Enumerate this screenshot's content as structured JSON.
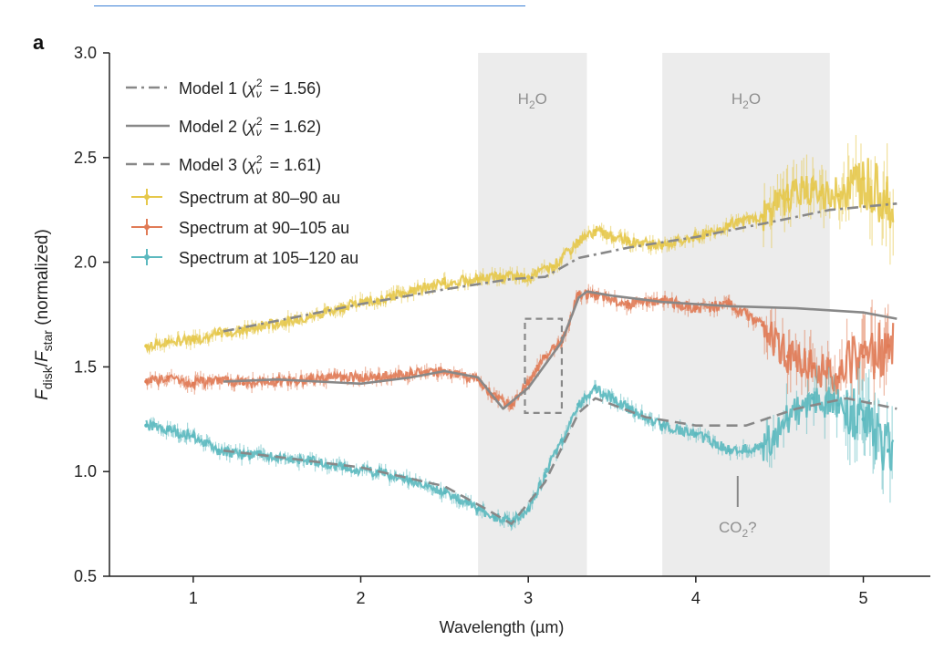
{
  "chart_data": {
    "type": "line",
    "panel_label": "a",
    "xlabel": "Wavelength (µm)",
    "ylabel_parts": {
      "f1": "F",
      "s1": "disk",
      "sep": "/",
      "f2": "F",
      "s2": "star",
      "rest": " (normalized)"
    },
    "xlim": [
      0.5,
      5.4
    ],
    "ylim": [
      0.5,
      3.0
    ],
    "xticks": [
      1,
      2,
      3,
      4,
      5
    ],
    "yticks": [
      "0.5",
      "1.0",
      "1.5",
      "2.0",
      "2.5",
      "3.0"
    ],
    "grid": false,
    "legend_position": "top-left",
    "shaded_regions": [
      {
        "x0": 2.7,
        "x1": 3.35,
        "label": "H2O",
        "label_main": "H",
        "label_sub": "2",
        "label_end": "O"
      },
      {
        "x0": 3.8,
        "x1": 4.8,
        "label": "H2O",
        "label_main": "H",
        "label_sub": "2",
        "label_end": "O"
      }
    ],
    "annotation": {
      "text": "CO2?",
      "main": "CO",
      "sub": "2",
      "end": "?",
      "x": 4.25,
      "y": 0.82
    },
    "highlight_box": {
      "x0": 2.98,
      "x1": 3.2,
      "y0": 1.28,
      "y1": 1.73
    },
    "colors": {
      "s1": "#e6c84b",
      "s2": "#e07b56",
      "s3": "#5cb9bf",
      "model": "#888888",
      "shade": "#ececec"
    },
    "series": [
      {
        "name": "Spectrum at 80–90 au",
        "color": "#e6c84b",
        "x": [
          0.72,
          0.85,
          1.0,
          1.15,
          1.3,
          1.5,
          1.7,
          1.9,
          2.1,
          2.3,
          2.5,
          2.7,
          2.85,
          3.0,
          3.15,
          3.3,
          3.4,
          3.6,
          3.8,
          4.0,
          4.2,
          4.4,
          4.55,
          4.7,
          4.85,
          5.0,
          5.15
        ],
        "y": [
          1.6,
          1.62,
          1.63,
          1.66,
          1.68,
          1.71,
          1.74,
          1.79,
          1.82,
          1.86,
          1.9,
          1.92,
          1.93,
          1.93,
          1.98,
          2.1,
          2.15,
          2.1,
          2.08,
          2.12,
          2.18,
          2.22,
          2.3,
          2.35,
          2.32,
          2.4,
          2.28
        ]
      },
      {
        "name": "Spectrum at 90–105 au",
        "color": "#e07b56",
        "x": [
          0.72,
          0.85,
          1.0,
          1.15,
          1.3,
          1.5,
          1.7,
          1.9,
          2.1,
          2.3,
          2.5,
          2.7,
          2.8,
          2.9,
          3.0,
          3.1,
          3.2,
          3.3,
          3.4,
          3.6,
          3.8,
          4.0,
          4.2,
          4.4,
          4.55,
          4.7,
          4.85,
          5.0,
          5.15
        ],
        "y": [
          1.43,
          1.45,
          1.42,
          1.44,
          1.42,
          1.43,
          1.44,
          1.45,
          1.45,
          1.47,
          1.48,
          1.44,
          1.35,
          1.32,
          1.42,
          1.55,
          1.62,
          1.85,
          1.84,
          1.8,
          1.82,
          1.78,
          1.8,
          1.7,
          1.55,
          1.5,
          1.45,
          1.55,
          1.6
        ]
      },
      {
        "name": "Spectrum at 105–120 au",
        "color": "#5cb9bf",
        "x": [
          0.72,
          0.85,
          1.0,
          1.15,
          1.3,
          1.5,
          1.7,
          1.9,
          2.1,
          2.3,
          2.5,
          2.7,
          2.8,
          2.9,
          3.0,
          3.1,
          3.2,
          3.3,
          3.4,
          3.6,
          3.8,
          4.0,
          4.2,
          4.4,
          4.55,
          4.7,
          4.85,
          5.0,
          5.15
        ],
        "y": [
          1.22,
          1.2,
          1.17,
          1.1,
          1.08,
          1.07,
          1.05,
          1.02,
          1.0,
          0.96,
          0.9,
          0.82,
          0.78,
          0.76,
          0.82,
          0.98,
          1.15,
          1.32,
          1.4,
          1.3,
          1.22,
          1.18,
          1.1,
          1.12,
          1.25,
          1.35,
          1.32,
          1.25,
          1.1
        ]
      }
    ],
    "models": [
      {
        "name": "Model 1",
        "chi": "1.56",
        "style": "dashdot",
        "x": [
          1.18,
          1.5,
          2.0,
          2.5,
          2.9,
          3.1,
          3.3,
          3.6,
          4.0,
          4.5,
          4.8,
          5.2
        ],
        "y": [
          1.67,
          1.72,
          1.8,
          1.87,
          1.92,
          1.93,
          2.02,
          2.07,
          2.12,
          2.2,
          2.25,
          2.28
        ]
      },
      {
        "name": "Model 2",
        "chi": "1.62",
        "style": "solid",
        "x": [
          1.18,
          1.5,
          2.0,
          2.3,
          2.5,
          2.7,
          2.85,
          3.0,
          3.2,
          3.3,
          3.35,
          3.5,
          3.8,
          4.2,
          4.6,
          5.0,
          5.2
        ],
        "y": [
          1.43,
          1.44,
          1.42,
          1.45,
          1.48,
          1.45,
          1.3,
          1.4,
          1.62,
          1.83,
          1.86,
          1.84,
          1.81,
          1.79,
          1.78,
          1.76,
          1.73
        ]
      },
      {
        "name": "Model 3",
        "chi": "1.61",
        "style": "dashed",
        "x": [
          1.18,
          1.5,
          2.0,
          2.5,
          2.75,
          2.9,
          3.1,
          3.3,
          3.4,
          3.7,
          4.0,
          4.3,
          4.6,
          4.9,
          5.2
        ],
        "y": [
          1.1,
          1.07,
          1.02,
          0.93,
          0.82,
          0.75,
          0.95,
          1.28,
          1.35,
          1.26,
          1.22,
          1.22,
          1.3,
          1.35,
          1.3
        ]
      }
    ],
    "legend": {
      "chi_symbol": "χ",
      "chi_sub": "ν",
      "chi_sup": "2"
    }
  }
}
